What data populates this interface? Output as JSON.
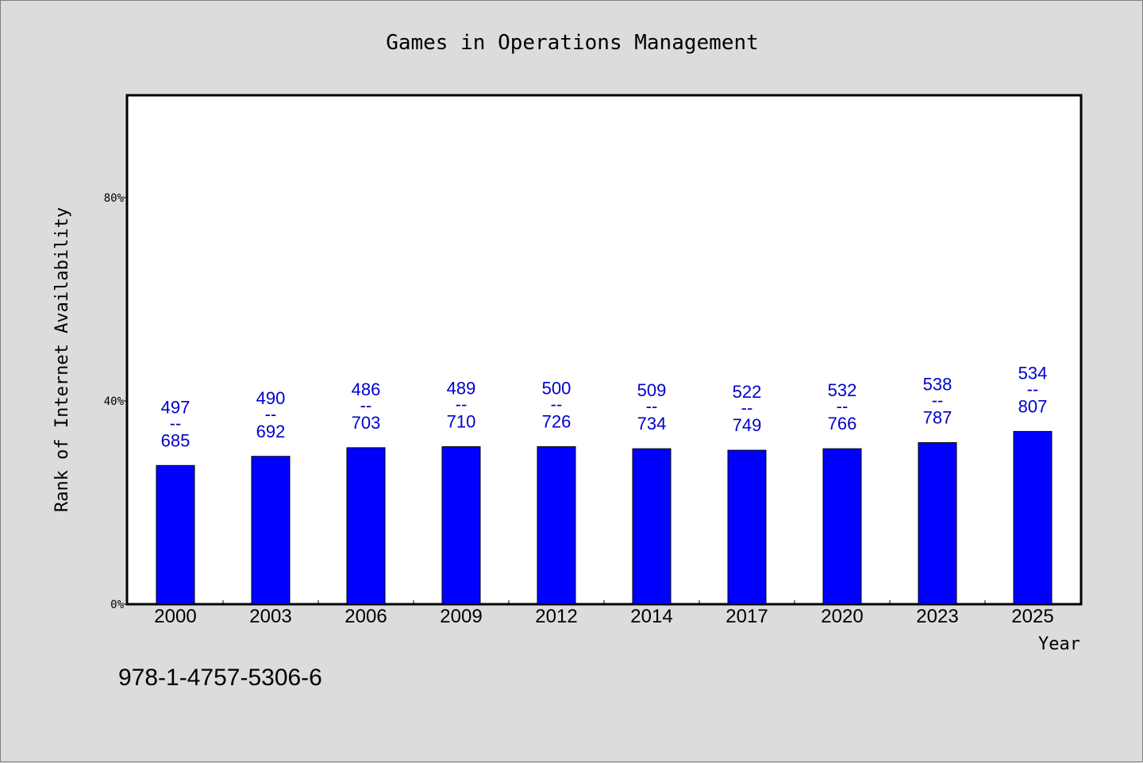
{
  "chart_data": {
    "type": "bar",
    "title": "Games in Operations Management",
    "xlabel": "Year",
    "ylabel": "Rank of Internet Availability",
    "ylim": [
      0,
      1
    ],
    "y_ticks": [
      {
        "value": 0,
        "label": "0%"
      },
      {
        "value": 0.4,
        "label": "40%"
      },
      {
        "value": 0.8,
        "label": "80%"
      }
    ],
    "categories": [
      "2000",
      "2003",
      "2006",
      "2009",
      "2012",
      "2014",
      "2017",
      "2020",
      "2023",
      "2025"
    ],
    "values": [
      0.273,
      0.291,
      0.308,
      0.31,
      0.31,
      0.306,
      0.303,
      0.306,
      0.318,
      0.34
    ],
    "data_labels": [
      {
        "top": "497",
        "sep": "--",
        "bottom": "685"
      },
      {
        "top": "490",
        "sep": "--",
        "bottom": "692"
      },
      {
        "top": "486",
        "sep": "--",
        "bottom": "703"
      },
      {
        "top": "489",
        "sep": "--",
        "bottom": "710"
      },
      {
        "top": "500",
        "sep": "--",
        "bottom": "726"
      },
      {
        "top": "509",
        "sep": "--",
        "bottom": "734"
      },
      {
        "top": "522",
        "sep": "--",
        "bottom": "749"
      },
      {
        "top": "532",
        "sep": "--",
        "bottom": "766"
      },
      {
        "top": "538",
        "sep": "--",
        "bottom": "787"
      },
      {
        "top": "534",
        "sep": "--",
        "bottom": "807"
      }
    ],
    "bar_color": "#0000ff",
    "label_color": "#0000cc",
    "grid": false,
    "legend": "none"
  },
  "footnote": "978-1-4757-5306-6",
  "colors": {
    "background": "#dcdcdc",
    "plot_background": "#ffffff"
  }
}
